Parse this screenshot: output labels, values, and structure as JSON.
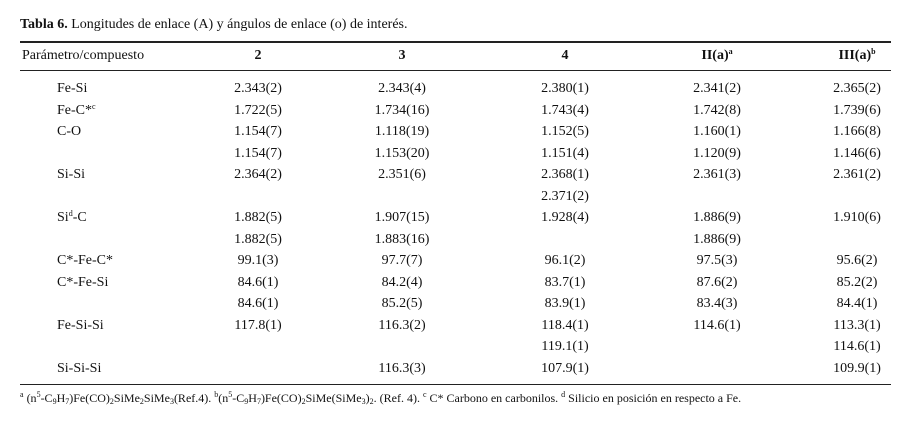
{
  "title": {
    "label": "Tabla 6.",
    "text": " Longitudes de enlace (A) y ángulos de enlace (o) de interés."
  },
  "header": [
    [
      {
        "t": "Parámetro/compuesto"
      }
    ],
    [
      {
        "t": "2"
      }
    ],
    [
      {
        "t": "3"
      }
    ],
    [
      {
        "t": "4"
      }
    ],
    [
      {
        "t": "II(a)"
      },
      {
        "sup": "a"
      }
    ],
    [
      {
        "t": "III(a)"
      },
      {
        "sup": "b"
      }
    ]
  ],
  "rows": [
    [
      [
        {
          "t": "Fe-Si"
        }
      ],
      "2.343(2)",
      "2.343(4)",
      "2.380(1)",
      "2.341(2)",
      "2.365(2)"
    ],
    [
      [
        {
          "t": "Fe-C*"
        },
        {
          "sup": "c"
        }
      ],
      "1.722(5)",
      "1.734(16)",
      "1.743(4)",
      "1.742(8)",
      "1.739(6)"
    ],
    [
      [
        {
          "t": "C-O"
        }
      ],
      "1.154(7)",
      "1.118(19)",
      "1.152(5)",
      "1.160(1)",
      "1.166(8)"
    ],
    [
      null,
      "1.154(7)",
      "1.153(20)",
      "1.151(4)",
      "1.120(9)",
      "1.146(6)"
    ],
    [
      [
        {
          "t": "Si-Si"
        }
      ],
      "2.364(2)",
      "2.351(6)",
      "2.368(1)",
      "2.361(3)",
      "2.361(2)"
    ],
    [
      null,
      null,
      null,
      "2.371(2)",
      null,
      null
    ],
    [
      [
        {
          "t": "Si"
        },
        {
          "sup": "d"
        },
        {
          "t": "-C"
        }
      ],
      "1.882(5)",
      "1.907(15)",
      "1.928(4)",
      "1.886(9)",
      "1.910(6)"
    ],
    [
      null,
      "1.882(5)",
      "1.883(16)",
      null,
      "1.886(9)",
      null
    ],
    [
      [
        {
          "t": "C*-Fe-C*"
        }
      ],
      "99.1(3)",
      "97.7(7)",
      "96.1(2)",
      "97.5(3)",
      "95.6(2)"
    ],
    [
      [
        {
          "t": "C*-Fe-Si"
        }
      ],
      "84.6(1)",
      "84.2(4)",
      "83.7(1)",
      "87.6(2)",
      "85.2(2)"
    ],
    [
      null,
      "84.6(1)",
      "85.2(5)",
      "83.9(1)",
      "83.4(3)",
      "84.4(1)"
    ],
    [
      [
        {
          "t": "Fe-Si-Si"
        }
      ],
      "117.8(1)",
      "116.3(2)",
      "118.4(1)",
      "114.6(1)",
      "113.3(1)"
    ],
    [
      null,
      null,
      null,
      "119.1(1)",
      null,
      "114.6(1)"
    ],
    [
      [
        {
          "t": "Si-Si-Si"
        }
      ],
      null,
      "116.3(3)",
      "107.9(1)",
      null,
      "109.9(1)"
    ]
  ],
  "footnote": [
    {
      "sup": "a"
    },
    {
      "t": " (n"
    },
    {
      "sup": "5"
    },
    {
      "t": "-C"
    },
    {
      "sub": "9"
    },
    {
      "t": "H"
    },
    {
      "sub": "7"
    },
    {
      "t": ")Fe(CO)"
    },
    {
      "sub": "2"
    },
    {
      "t": "SiMe"
    },
    {
      "sub": "2"
    },
    {
      "t": "SiMe"
    },
    {
      "sub": "3"
    },
    {
      "t": "(Ref.4). "
    },
    {
      "sup": "b"
    },
    {
      "t": "(n"
    },
    {
      "sup": "5"
    },
    {
      "t": "-C"
    },
    {
      "sub": "9"
    },
    {
      "t": "H"
    },
    {
      "sub": "7"
    },
    {
      "t": ")Fe(CO)"
    },
    {
      "sub": "2"
    },
    {
      "t": "SiMe(SiMe"
    },
    {
      "sub": "3"
    },
    {
      "t": ")"
    },
    {
      "sub": "2"
    },
    {
      "t": ". (Ref. 4). "
    },
    {
      "sup": "c"
    },
    {
      "t": " C* Carbono en carbonilos. "
    },
    {
      "sup": "d"
    },
    {
      "t": " Silicio en posición en respecto a Fe."
    }
  ]
}
